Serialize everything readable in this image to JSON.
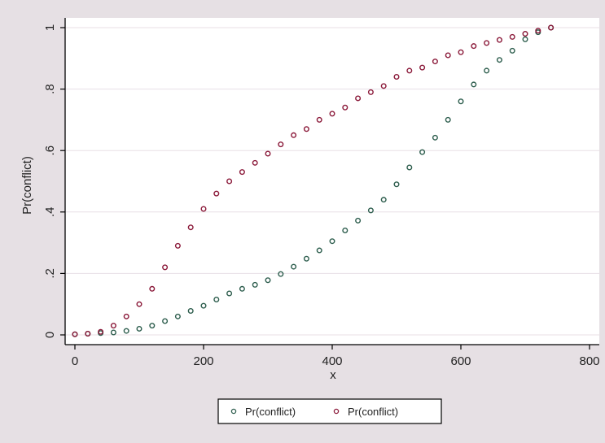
{
  "chart_data": {
    "type": "scatter",
    "title": "",
    "xlabel": "x",
    "ylabel": "Pr(conflict)",
    "xlim": [
      0,
      800
    ],
    "ylim": [
      0,
      1
    ],
    "x_ticks": [
      0,
      200,
      400,
      600,
      800
    ],
    "x_tick_labels": [
      "0",
      "200",
      "400",
      "600",
      "800"
    ],
    "y_ticks": [
      0,
      0.2,
      0.4,
      0.6,
      0.8,
      1
    ],
    "y_tick_labels": [
      "0",
      ".2",
      ".4",
      ".6",
      ".8",
      "1"
    ],
    "grid": true,
    "legend_position": "bottom",
    "series": [
      {
        "name": "Pr(conflict)",
        "color": "#2e5e4e",
        "marker": "hollow-circle",
        "x": [
          0,
          20,
          40,
          60,
          80,
          100,
          120,
          140,
          160,
          180,
          200,
          220,
          240,
          260,
          280,
          300,
          320,
          340,
          360,
          380,
          400,
          420,
          440,
          460,
          480,
          500,
          520,
          540,
          560,
          580,
          600,
          620,
          640,
          660,
          680,
          700,
          720,
          740
        ],
        "y": [
          0.002,
          0.004,
          0.006,
          0.008,
          0.013,
          0.02,
          0.03,
          0.045,
          0.06,
          0.078,
          0.095,
          0.115,
          0.135,
          0.15,
          0.163,
          0.178,
          0.198,
          0.222,
          0.248,
          0.275,
          0.305,
          0.34,
          0.372,
          0.405,
          0.44,
          0.49,
          0.545,
          0.595,
          0.642,
          0.7,
          0.76,
          0.815,
          0.86,
          0.895,
          0.925,
          0.962,
          0.985,
          1.0
        ]
      },
      {
        "name": "Pr(conflict)",
        "color": "#8b1a3a",
        "marker": "hollow-circle",
        "x": [
          0,
          20,
          40,
          60,
          80,
          100,
          120,
          140,
          160,
          180,
          200,
          220,
          240,
          260,
          280,
          300,
          320,
          340,
          360,
          380,
          400,
          420,
          440,
          460,
          480,
          500,
          520,
          540,
          560,
          580,
          600,
          620,
          640,
          660,
          680,
          700,
          720,
          740
        ],
        "y": [
          0.002,
          0.004,
          0.01,
          0.03,
          0.06,
          0.1,
          0.15,
          0.22,
          0.29,
          0.35,
          0.41,
          0.46,
          0.5,
          0.53,
          0.56,
          0.59,
          0.62,
          0.65,
          0.67,
          0.7,
          0.72,
          0.74,
          0.77,
          0.79,
          0.81,
          0.84,
          0.86,
          0.87,
          0.89,
          0.91,
          0.92,
          0.94,
          0.95,
          0.96,
          0.97,
          0.98,
          0.99,
          1.0
        ]
      }
    ]
  }
}
